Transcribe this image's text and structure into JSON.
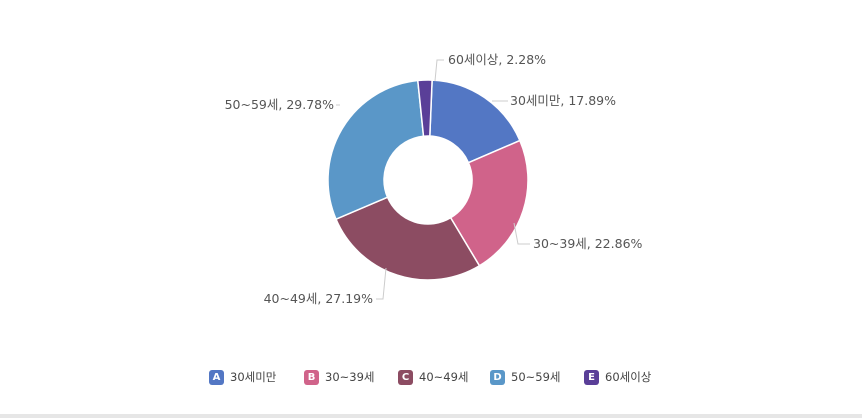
{
  "chart_data": {
    "type": "pie",
    "title": "",
    "donut": true,
    "series": [
      {
        "key": "A",
        "name": "30세미만",
        "value": 17.89,
        "label": "30세미만, 17.89%",
        "color": "#5377c4"
      },
      {
        "key": "B",
        "name": "30~39세",
        "value": 22.86,
        "label": "30~39세, 22.86%",
        "color": "#d0638a"
      },
      {
        "key": "C",
        "name": "40~49세",
        "value": 27.19,
        "label": "40~49세, 27.19%",
        "color": "#8c4c62"
      },
      {
        "key": "D",
        "name": "50~59세",
        "value": 29.78,
        "label": "50~59세, 29.78%",
        "color": "#5a97c8"
      },
      {
        "key": "E",
        "name": "60세이상",
        "value": 2.28,
        "label": "60세이상, 2.28%",
        "color": "#5a3f98"
      }
    ],
    "legend_position": "bottom",
    "leader_line_color": "#cccccc",
    "label_color": "#555555"
  }
}
